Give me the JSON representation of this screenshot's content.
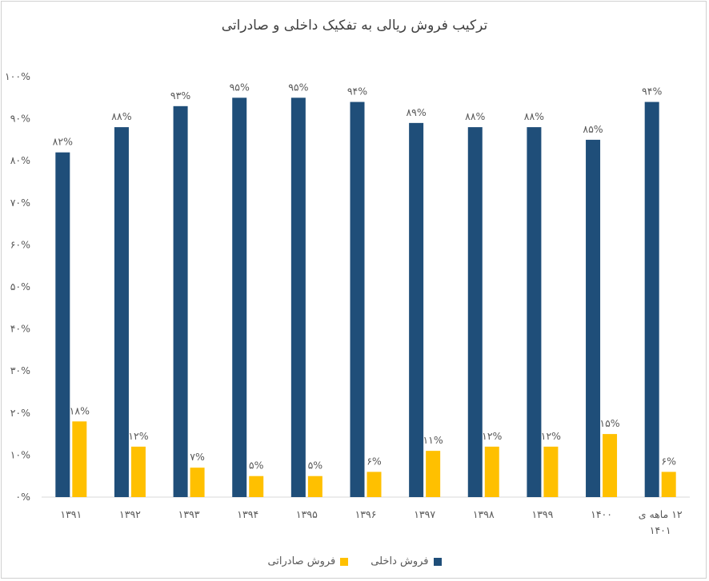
{
  "chart_data": {
    "type": "bar",
    "title": "ترکیب فروش ریالی به تفکیک داخلی و صادراتی",
    "categories": [
      [
        "۱۳۹۱"
      ],
      [
        "۱۳۹۲"
      ],
      [
        "۱۳۹۳"
      ],
      [
        "۱۳۹۴"
      ],
      [
        "۱۳۹۵"
      ],
      [
        "۱۳۹۶"
      ],
      [
        "۱۳۹۷"
      ],
      [
        "۱۳۹۸"
      ],
      [
        "۱۳۹۹"
      ],
      [
        "۱۴۰۰"
      ],
      [
        "۱۲ ماهه ی",
        "۱۴۰۱"
      ]
    ],
    "series": [
      {
        "name": "فروش داخلی",
        "color": "#1F4E79",
        "values": [
          82,
          88,
          93,
          95,
          95,
          94,
          89,
          88,
          88,
          85,
          94
        ],
        "labels": [
          "۸۲%",
          "۸۸%",
          "۹۳%",
          "۹۵%",
          "۹۵%",
          "۹۴%",
          "۸۹%",
          "۸۸%",
          "۸۸%",
          "۸۵%",
          "۹۴%"
        ]
      },
      {
        "name": "فروش صادراتی",
        "color": "#FFC000",
        "values": [
          18,
          12,
          7,
          5,
          5,
          6,
          11,
          12,
          12,
          15,
          6
        ],
        "labels": [
          "۱۸%",
          "۱۲%",
          "۷%",
          "۵%",
          "۵%",
          "۶%",
          "۱۱%",
          "۱۲%",
          "۱۲%",
          "۱۵%",
          "۶%"
        ]
      }
    ],
    "ylim": [
      0,
      100
    ],
    "yticks": [
      0,
      10,
      20,
      30,
      40,
      50,
      60,
      70,
      80,
      90,
      100
    ],
    "ytick_labels": [
      "۰%",
      "۱۰%",
      "۲۰%",
      "۳۰%",
      "۴۰%",
      "۵۰%",
      "۶۰%",
      "۷۰%",
      "۸۰%",
      "۹۰%",
      "۱۰۰%"
    ],
    "legend_position": "bottom",
    "grid": false
  }
}
